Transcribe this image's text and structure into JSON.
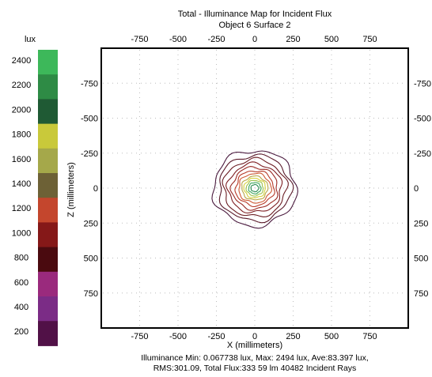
{
  "chart_data": {
    "type": "contour",
    "title": "Total - Illuminance Map for Incident Flux",
    "subtitle": "Object 6 Surface 2",
    "xlabel": "X (millimeters)",
    "ylabel": "Z (millimeters)",
    "x_ticks": [
      "-750",
      "-500",
      "-250",
      "0",
      "250",
      "500",
      "750"
    ],
    "x_tick_values": [
      -750,
      -500,
      -250,
      0,
      250,
      500,
      750
    ],
    "y_ticks": [
      "-750",
      "-500",
      "-250",
      "0",
      "250",
      "500",
      "750"
    ],
    "y_tick_values": [
      -750,
      -500,
      -250,
      0,
      250,
      500,
      750
    ],
    "xlim": [
      -1000,
      1000
    ],
    "ylim": [
      -1000,
      1000
    ],
    "y_axis_inverted": true,
    "colorbar": {
      "unit": "lux",
      "labels": [
        "2400",
        "2200",
        "2000",
        "1800",
        "1600",
        "1400",
        "1200",
        "1000",
        "800",
        "600",
        "400",
        "200"
      ],
      "colors": [
        "#3db85a",
        "#2e8b45",
        "#1f5a34",
        "#c9c93a",
        "#a5a84a",
        "#6d6136",
        "#c4462d",
        "#851818",
        "#4a0a0f",
        "#9a2a7d",
        "#7b2c86",
        "#511147"
      ]
    },
    "contours": [
      {
        "level": 100,
        "color": "#4a1a3e",
        "radius": 270
      },
      {
        "level": 300,
        "color": "#5a1a2a",
        "radius": 235
      },
      {
        "level": 500,
        "color": "#6a1c22",
        "radius": 205
      },
      {
        "level": 700,
        "color": "#7e1e22",
        "radius": 175
      },
      {
        "level": 900,
        "color": "#9a2a24",
        "radius": 150
      },
      {
        "level": 1100,
        "color": "#b73a28",
        "radius": 125
      },
      {
        "level": 1300,
        "color": "#cf5a34",
        "radius": 105
      },
      {
        "level": 1500,
        "color": "#b8a748",
        "radius": 85
      },
      {
        "level": 1700,
        "color": "#d6d23c",
        "radius": 70
      },
      {
        "level": 1900,
        "color": "#9cc24c",
        "radius": 55
      },
      {
        "level": 2100,
        "color": "#3aa65a",
        "radius": 40
      },
      {
        "level": 2300,
        "color": "#2e8f55",
        "radius": 25
      }
    ],
    "peak": {
      "x": 0,
      "z": 0
    },
    "grid": "dotted",
    "stats": {
      "line1": "Illuminance Min: 0.067738 lux, Max: 2494 lux, Ave:83.397 lux,",
      "line2": "RMS:301.09, Total Flux:333 59 lm 40482 Incident Rays",
      "min_lux": 0.067738,
      "max_lux": 2494,
      "ave_lux": 83.397,
      "rms": 301.09,
      "incident_rays": 40482
    }
  }
}
